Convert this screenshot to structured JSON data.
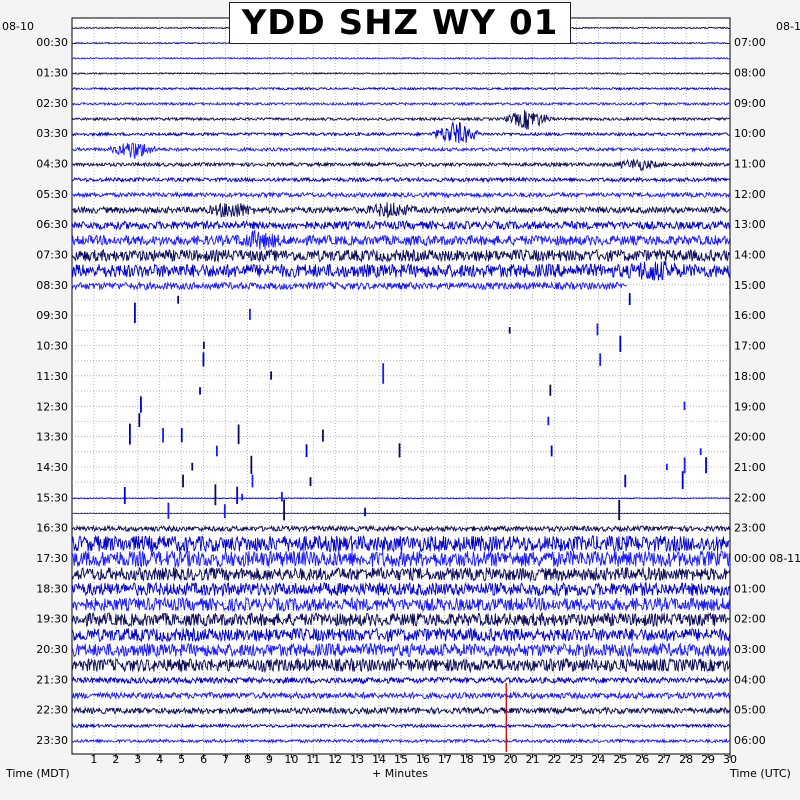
{
  "chart_data": {
    "type": "helicorder",
    "title": "YDD SHZ WY 01",
    "xlabel_left": "Time (MDT)",
    "xlabel_center": "+ Minutes",
    "xlabel_right": "Time (UTC)",
    "x_ticks": [
      "1",
      "2",
      "3",
      "4",
      "5",
      "6",
      "7",
      "8",
      "9",
      "10",
      "11",
      "12",
      "13",
      "14",
      "15",
      "16",
      "17",
      "18",
      "19",
      "20",
      "21",
      "22",
      "23",
      "24",
      "25",
      "26",
      "27",
      "28",
      "29",
      "30"
    ],
    "left_date": "08-10",
    "right_date": "08-1",
    "left_labels": [
      "00:30",
      "01:30",
      "02:30",
      "03:30",
      "04:30",
      "05:30",
      "06:30",
      "07:30",
      "08:30",
      "09:30",
      "10:30",
      "11:30",
      "12:30",
      "13:30",
      "14:30",
      "15:30",
      "16:30",
      "17:30",
      "18:30",
      "19:30",
      "20:30",
      "21:30",
      "22:30",
      "23:30"
    ],
    "right_labels": [
      "07:00",
      "08:00",
      "09:00",
      "10:00",
      "11:00",
      "12:00",
      "13:00",
      "14:00",
      "15:00",
      "16:00",
      "17:00",
      "18:00",
      "19:00",
      "20:00",
      "21:00",
      "22:00",
      "23:00",
      "00:00 08-11",
      "01:00",
      "02:00",
      "03:00",
      "04:00",
      "05:00",
      "06:00"
    ],
    "trace_colors": [
      "#0a0a5a",
      "#0000cc",
      "#1a1aff"
    ],
    "marker_color": "#cc0000",
    "marker_minute": 19.8,
    "grid": true
  }
}
